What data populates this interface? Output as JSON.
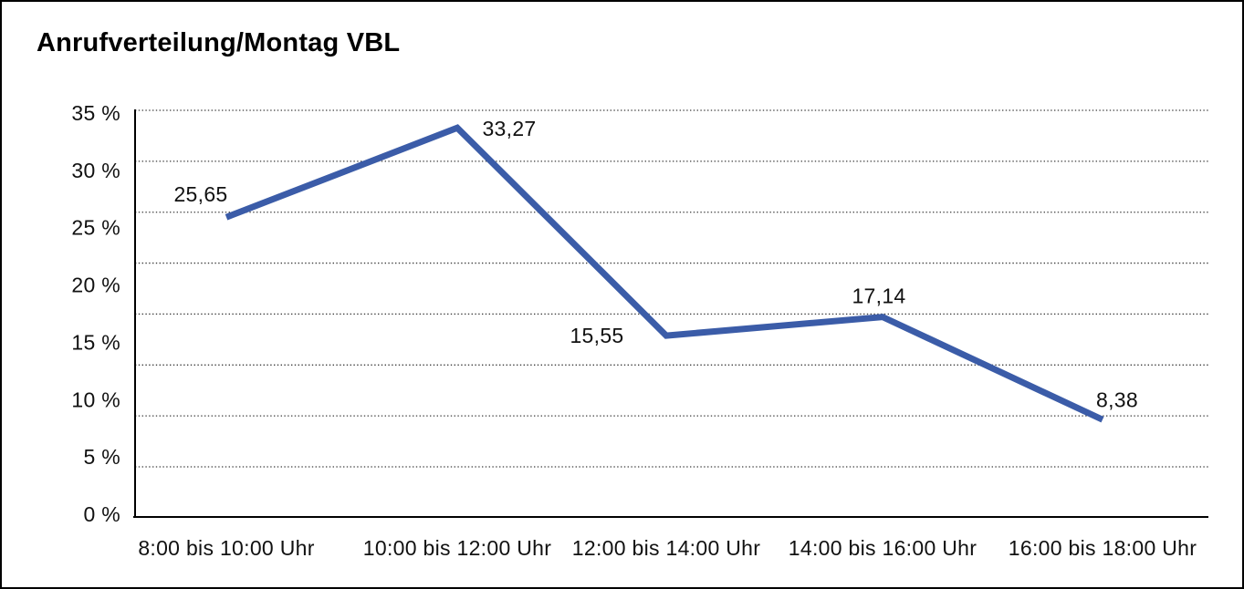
{
  "window": {
    "background": "#FFFFFF",
    "frame_border_color": "#000000"
  },
  "chart_data": {
    "type": "line",
    "title": "Anrufverteilung/Montag VBL",
    "categories": [
      "8:00 bis 10:00 Uhr",
      "10:00 bis 12:00 Uhr",
      "12:00 bis 14:00 Uhr",
      "14:00 bis 16:00 Uhr",
      "16:00 bis 18:00 Uhr"
    ],
    "values": [
      25.65,
      33.27,
      15.55,
      17.14,
      8.38
    ],
    "value_labels": [
      "25,65",
      "33,27",
      "15,55",
      "17,14",
      "8,38"
    ],
    "y_tick_labels": [
      "35 %",
      "30 %",
      "25 %",
      "20 %",
      "15 %",
      "10 %",
      "5 %",
      "0 %"
    ],
    "ylim": [
      0,
      35
    ],
    "y_unit": "%",
    "xlabel": "",
    "ylabel": "",
    "grid": "horizontal dotted",
    "legend": "none",
    "line_color": "#3B5CA8",
    "axis_color": "#000000",
    "grid_color": "#3C3C3C",
    "text_color": "#111111"
  }
}
